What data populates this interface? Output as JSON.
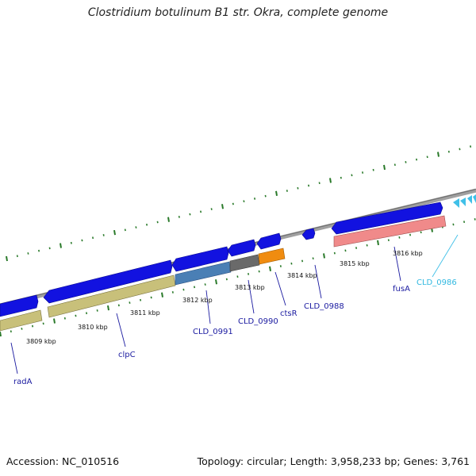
{
  "title": "Clostridium botulinum B1 str. Okra, complete genome",
  "footer": {
    "accession": "Accession: NC_010516",
    "topology": "Topology: circular; Length: 3,958,233 bp; Genes: 3,761"
  },
  "colors": {
    "backbone": "#8a8a8a",
    "gene_blue": "#1010e0",
    "gene_olive": "#c8c07a",
    "gene_steel": "#4a7fb5",
    "gene_gray": "#6a6a6a",
    "gene_orange": "#f08c10",
    "gene_salmon": "#f08a8a",
    "gene_cyan": "#40c0e8",
    "tick_green": "#2a7a2a",
    "label_blue": "#1a1aa0",
    "label_cyan": "#30b8e0"
  },
  "scale": {
    "ticks": [
      {
        "label": "3809 kbp"
      },
      {
        "label": "3810 kbp"
      },
      {
        "label": "3811 kbp"
      },
      {
        "label": "3812 kbp"
      },
      {
        "label": "3813 kbp"
      },
      {
        "label": "3814 kbp"
      },
      {
        "label": "3815 kbp"
      },
      {
        "label": "3816 kbp"
      }
    ]
  },
  "gene_labels": [
    {
      "name": "radA",
      "color": "label_blue"
    },
    {
      "name": "clpC",
      "color": "label_blue"
    },
    {
      "name": "CLD_0991",
      "color": "label_blue"
    },
    {
      "name": "CLD_0990",
      "color": "label_blue"
    },
    {
      "name": "ctsR",
      "color": "label_blue"
    },
    {
      "name": "CLD_0988",
      "color": "label_blue"
    },
    {
      "name": "fusA",
      "color": "label_blue"
    },
    {
      "name": "CLD_0986",
      "color": "label_cyan"
    }
  ]
}
